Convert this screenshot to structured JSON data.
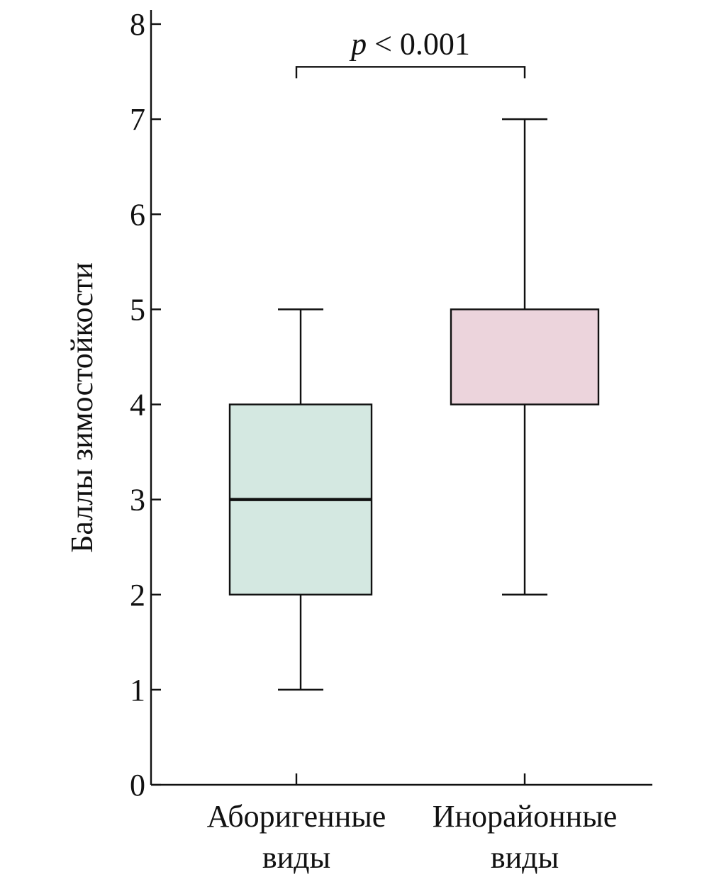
{
  "chart_data": {
    "type": "box",
    "ylabel": "Баллы зимостойкости",
    "ylim": [
      0,
      8
    ],
    "yticks": [
      0,
      1,
      2,
      3,
      4,
      5,
      6,
      7,
      8
    ],
    "categories": [
      {
        "lines": [
          "Аборигенные",
          "виды"
        ]
      },
      {
        "lines": [
          "Инорайонные",
          "виды"
        ]
      }
    ],
    "boxes": [
      {
        "min": 1,
        "q1": 2,
        "median": 3,
        "q3": 4,
        "max": 5,
        "color": "#d4e8e1"
      },
      {
        "min": 2,
        "q1": 4,
        "median": 4,
        "q3": 5,
        "max": 7,
        "color": "#ecd4dc"
      }
    ],
    "significance": {
      "p_symbol": "p",
      "text": " < 0.001",
      "between": [
        0,
        1
      ],
      "y": 7.55
    }
  }
}
